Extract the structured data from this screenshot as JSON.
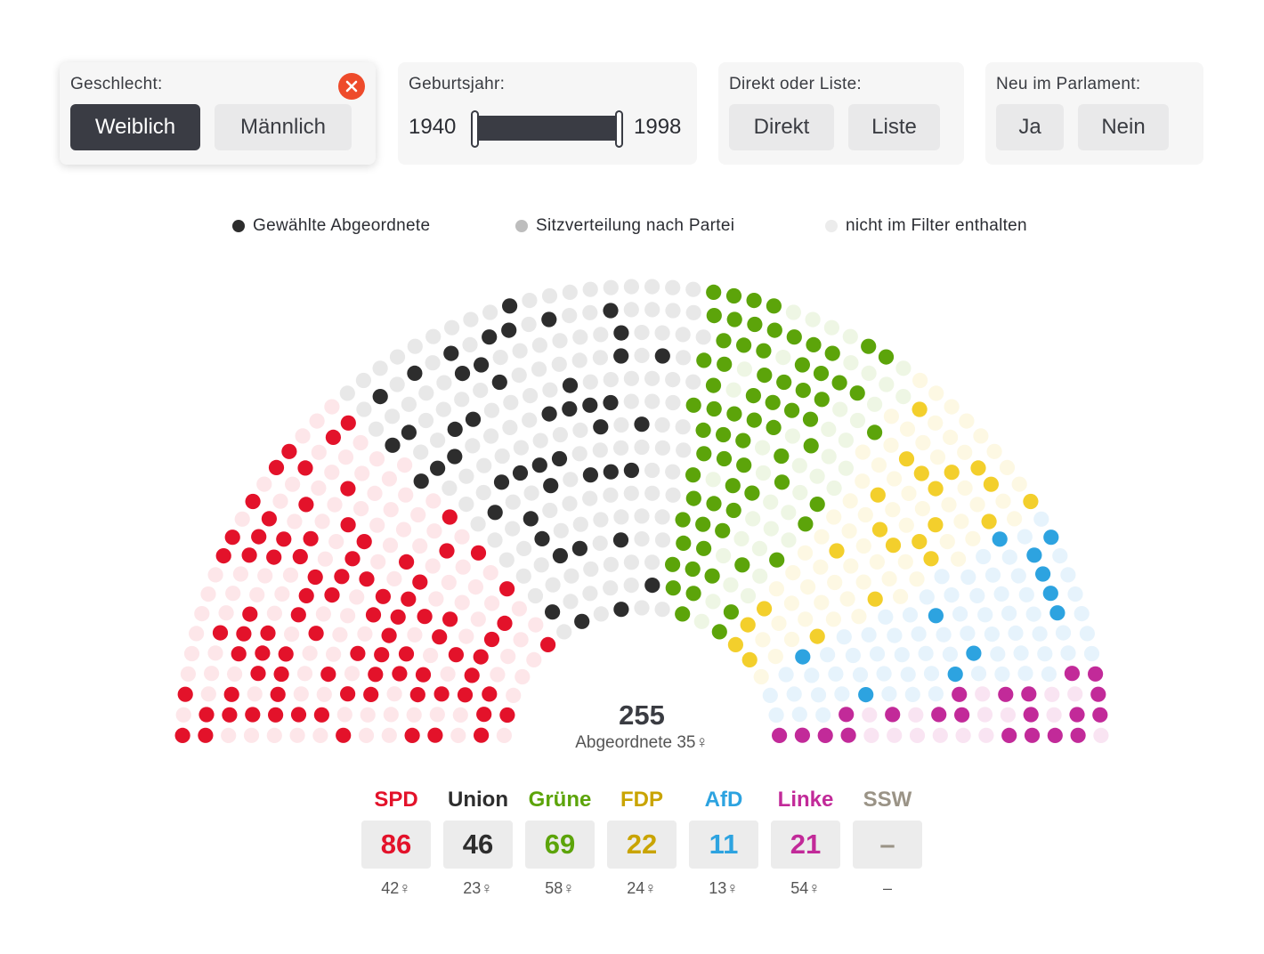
{
  "filters": {
    "gender": {
      "label": "Geschlecht:",
      "options": [
        "Weiblich",
        "Männlich"
      ],
      "selected": "Weiblich",
      "clear_icon": "close-icon"
    },
    "birth_year": {
      "label": "Geburtsjahr:",
      "min": "1940",
      "max": "1998"
    },
    "mandate": {
      "label": "Direkt oder Liste:",
      "options": [
        "Direkt",
        "Liste"
      ]
    },
    "new_in_parliament": {
      "label": "Neu im Parlament:",
      "options": [
        "Ja",
        "Nein"
      ]
    }
  },
  "legend": {
    "elected": {
      "label": "Gewählte Abgeordnete",
      "color": "#2d2d2d"
    },
    "distribution": {
      "label": "Sitzverteilung nach Partei",
      "color": "#bdbdbd"
    },
    "excluded": {
      "label": "nicht im Filter enthalten",
      "color": "#ececec"
    }
  },
  "total": {
    "count": "255",
    "label": "Abgeordnete 35♀"
  },
  "parties": [
    {
      "name": "SPD",
      "count": "86",
      "pct": "42♀",
      "color": "#e3122a",
      "light": "#fde6e9"
    },
    {
      "name": "Union",
      "count": "46",
      "pct": "23♀",
      "color": "#2d2d2d",
      "light": "#e8e8e8"
    },
    {
      "name": "Grüne",
      "count": "69",
      "pct": "58♀",
      "color": "#5ca40a",
      "light": "#eef6e4"
    },
    {
      "name": "FDP",
      "count": "22",
      "pct": "24♀",
      "color": "#c9a400",
      "dot": "#f3cf2c",
      "light": "#fdf8e3"
    },
    {
      "name": "AfD",
      "count": "11",
      "pct": "13♀",
      "color": "#2da3e0",
      "light": "#e6f3fc"
    },
    {
      "name": "Linke",
      "count": "21",
      "pct": "54♀",
      "color": "#c22a99",
      "light": "#f9e4f2"
    },
    {
      "name": "SSW",
      "count": "–",
      "pct": "–",
      "color": "#9a9386",
      "light": "#eeeeee"
    }
  ],
  "chart_data": {
    "type": "parliament",
    "title": "",
    "total_seats_shown": 255,
    "categories": [
      "SPD",
      "Union",
      "Grüne",
      "FDP",
      "AfD",
      "Linke",
      "SSW"
    ],
    "values": [
      86,
      46,
      69,
      22,
      11,
      21,
      0
    ],
    "female_share": [
      "42♀",
      "23♀",
      "58♀",
      "24♀",
      "13♀",
      "54♀",
      "–"
    ]
  }
}
